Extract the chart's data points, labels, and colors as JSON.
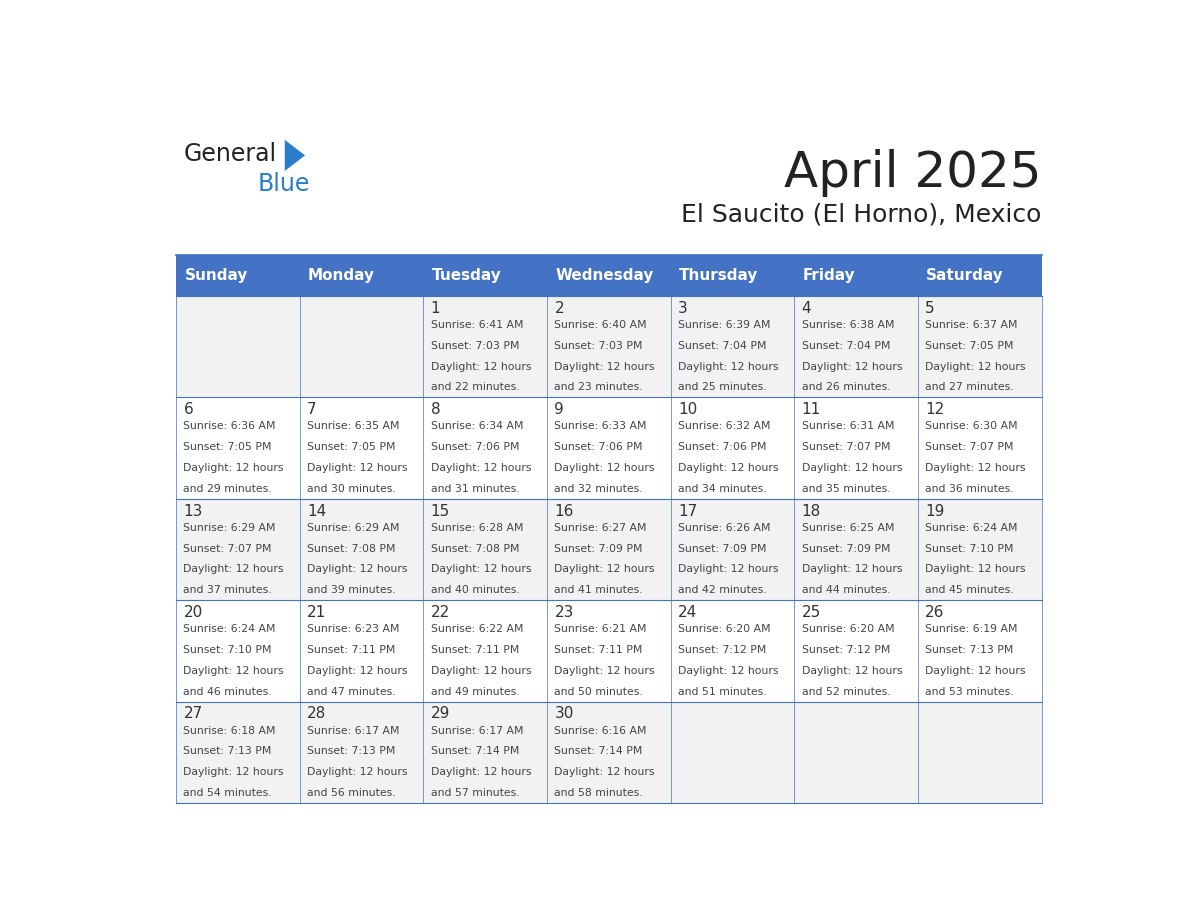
{
  "title": "April 2025",
  "subtitle": "El Saucito (El Horno), Mexico",
  "days_of_week": [
    "Sunday",
    "Monday",
    "Tuesday",
    "Wednesday",
    "Thursday",
    "Friday",
    "Saturday"
  ],
  "header_bg_color": "#4472C4",
  "header_text_color": "#FFFFFF",
  "cell_bg_even": "#F2F2F2",
  "cell_bg_odd": "#FFFFFF",
  "cell_border_color": "#4472C4",
  "day_number_color": "#333333",
  "day_info_color": "#444444",
  "title_color": "#222222",
  "subtitle_color": "#222222",
  "logo_general_color": "#222222",
  "logo_blue_color": "#2A7DC9",
  "weeks": [
    [
      {
        "day": null,
        "info": ""
      },
      {
        "day": null,
        "info": ""
      },
      {
        "day": 1,
        "info": "Sunrise: 6:41 AM\nSunset: 7:03 PM\nDaylight: 12 hours\nand 22 minutes."
      },
      {
        "day": 2,
        "info": "Sunrise: 6:40 AM\nSunset: 7:03 PM\nDaylight: 12 hours\nand 23 minutes."
      },
      {
        "day": 3,
        "info": "Sunrise: 6:39 AM\nSunset: 7:04 PM\nDaylight: 12 hours\nand 25 minutes."
      },
      {
        "day": 4,
        "info": "Sunrise: 6:38 AM\nSunset: 7:04 PM\nDaylight: 12 hours\nand 26 minutes."
      },
      {
        "day": 5,
        "info": "Sunrise: 6:37 AM\nSunset: 7:05 PM\nDaylight: 12 hours\nand 27 minutes."
      }
    ],
    [
      {
        "day": 6,
        "info": "Sunrise: 6:36 AM\nSunset: 7:05 PM\nDaylight: 12 hours\nand 29 minutes."
      },
      {
        "day": 7,
        "info": "Sunrise: 6:35 AM\nSunset: 7:05 PM\nDaylight: 12 hours\nand 30 minutes."
      },
      {
        "day": 8,
        "info": "Sunrise: 6:34 AM\nSunset: 7:06 PM\nDaylight: 12 hours\nand 31 minutes."
      },
      {
        "day": 9,
        "info": "Sunrise: 6:33 AM\nSunset: 7:06 PM\nDaylight: 12 hours\nand 32 minutes."
      },
      {
        "day": 10,
        "info": "Sunrise: 6:32 AM\nSunset: 7:06 PM\nDaylight: 12 hours\nand 34 minutes."
      },
      {
        "day": 11,
        "info": "Sunrise: 6:31 AM\nSunset: 7:07 PM\nDaylight: 12 hours\nand 35 minutes."
      },
      {
        "day": 12,
        "info": "Sunrise: 6:30 AM\nSunset: 7:07 PM\nDaylight: 12 hours\nand 36 minutes."
      }
    ],
    [
      {
        "day": 13,
        "info": "Sunrise: 6:29 AM\nSunset: 7:07 PM\nDaylight: 12 hours\nand 37 minutes."
      },
      {
        "day": 14,
        "info": "Sunrise: 6:29 AM\nSunset: 7:08 PM\nDaylight: 12 hours\nand 39 minutes."
      },
      {
        "day": 15,
        "info": "Sunrise: 6:28 AM\nSunset: 7:08 PM\nDaylight: 12 hours\nand 40 minutes."
      },
      {
        "day": 16,
        "info": "Sunrise: 6:27 AM\nSunset: 7:09 PM\nDaylight: 12 hours\nand 41 minutes."
      },
      {
        "day": 17,
        "info": "Sunrise: 6:26 AM\nSunset: 7:09 PM\nDaylight: 12 hours\nand 42 minutes."
      },
      {
        "day": 18,
        "info": "Sunrise: 6:25 AM\nSunset: 7:09 PM\nDaylight: 12 hours\nand 44 minutes."
      },
      {
        "day": 19,
        "info": "Sunrise: 6:24 AM\nSunset: 7:10 PM\nDaylight: 12 hours\nand 45 minutes."
      }
    ],
    [
      {
        "day": 20,
        "info": "Sunrise: 6:24 AM\nSunset: 7:10 PM\nDaylight: 12 hours\nand 46 minutes."
      },
      {
        "day": 21,
        "info": "Sunrise: 6:23 AM\nSunset: 7:11 PM\nDaylight: 12 hours\nand 47 minutes."
      },
      {
        "day": 22,
        "info": "Sunrise: 6:22 AM\nSunset: 7:11 PM\nDaylight: 12 hours\nand 49 minutes."
      },
      {
        "day": 23,
        "info": "Sunrise: 6:21 AM\nSunset: 7:11 PM\nDaylight: 12 hours\nand 50 minutes."
      },
      {
        "day": 24,
        "info": "Sunrise: 6:20 AM\nSunset: 7:12 PM\nDaylight: 12 hours\nand 51 minutes."
      },
      {
        "day": 25,
        "info": "Sunrise: 6:20 AM\nSunset: 7:12 PM\nDaylight: 12 hours\nand 52 minutes."
      },
      {
        "day": 26,
        "info": "Sunrise: 6:19 AM\nSunset: 7:13 PM\nDaylight: 12 hours\nand 53 minutes."
      }
    ],
    [
      {
        "day": 27,
        "info": "Sunrise: 6:18 AM\nSunset: 7:13 PM\nDaylight: 12 hours\nand 54 minutes."
      },
      {
        "day": 28,
        "info": "Sunrise: 6:17 AM\nSunset: 7:13 PM\nDaylight: 12 hours\nand 56 minutes."
      },
      {
        "day": 29,
        "info": "Sunrise: 6:17 AM\nSunset: 7:14 PM\nDaylight: 12 hours\nand 57 minutes."
      },
      {
        "day": 30,
        "info": "Sunrise: 6:16 AM\nSunset: 7:14 PM\nDaylight: 12 hours\nand 58 minutes."
      },
      {
        "day": null,
        "info": ""
      },
      {
        "day": null,
        "info": ""
      },
      {
        "day": null,
        "info": ""
      }
    ]
  ]
}
